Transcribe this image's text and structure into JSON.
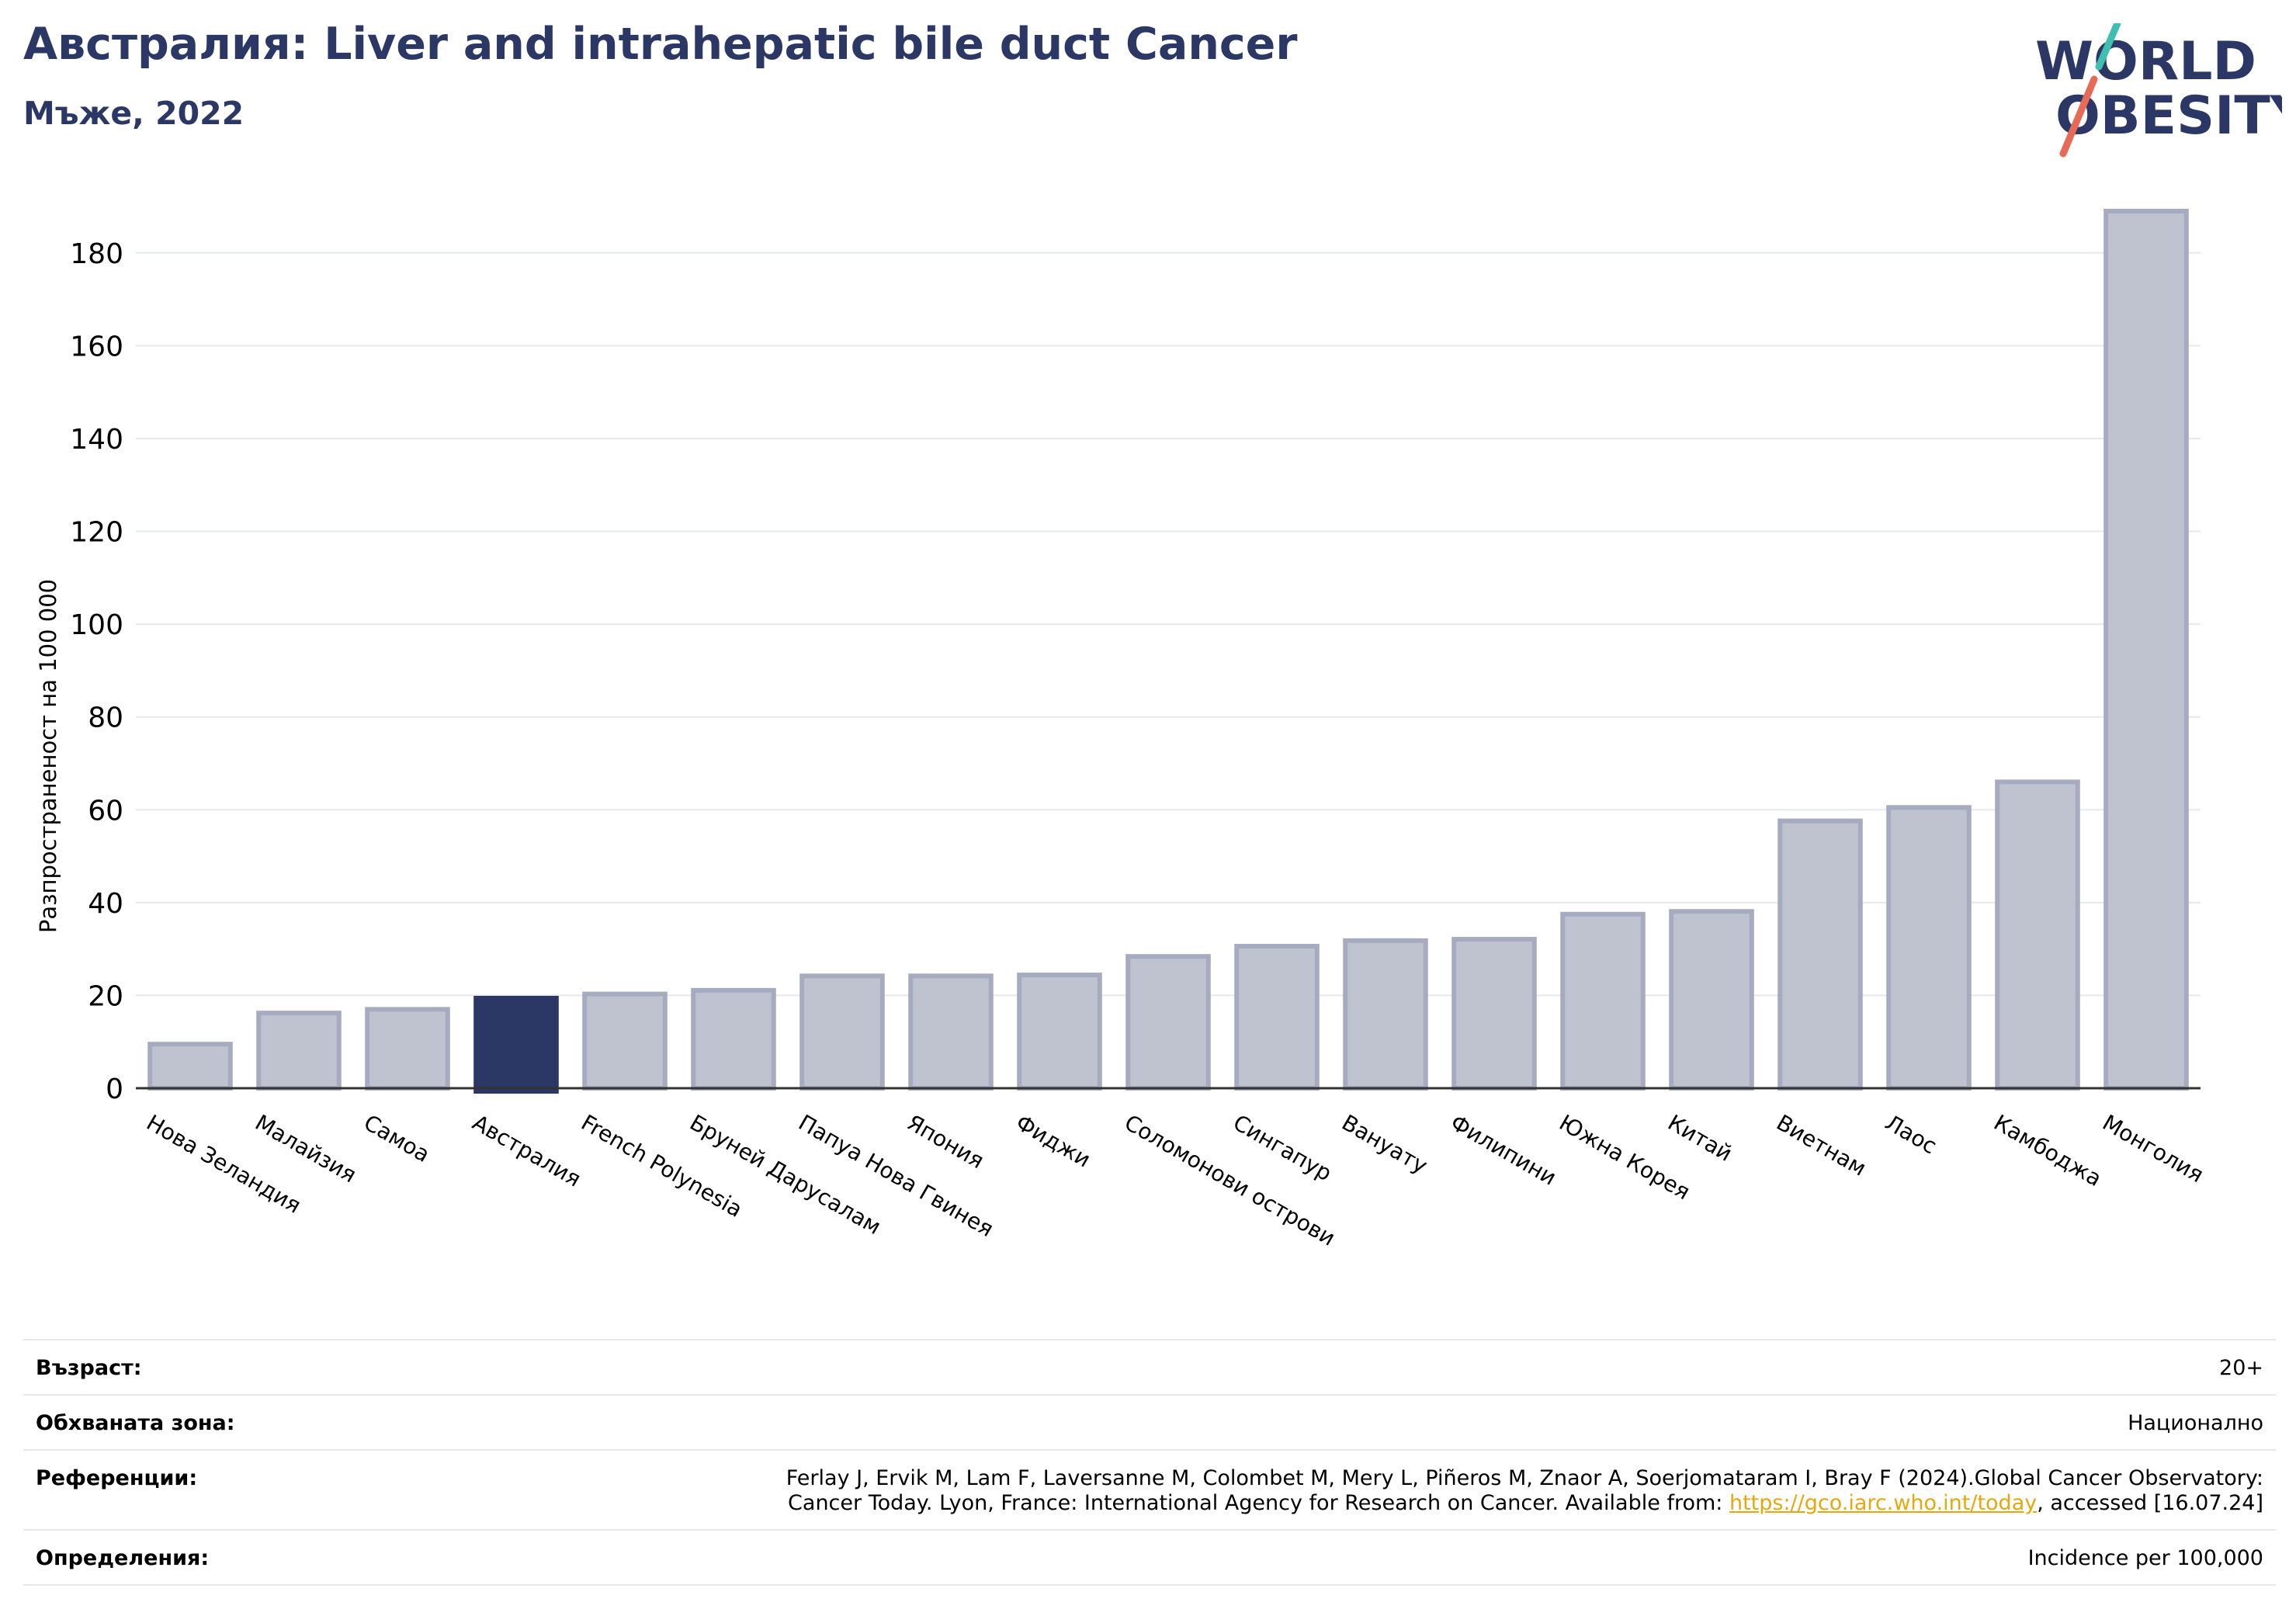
{
  "header": {
    "title": "Австралия: Liver and intrahepatic bile duct Cancer",
    "subtitle": "Мъже, 2022"
  },
  "logo": {
    "line1": "WORLD",
    "line2": "OBESITY"
  },
  "colors": {
    "bar": "#bfc3cf",
    "bar_edge": "#a6abc0",
    "highlight": "#2b3764",
    "title": "#2b3764",
    "link": "#e6a80e",
    "logo_teal": "#3fbfb2",
    "logo_coral": "#e76a57"
  },
  "chart_data": {
    "type": "bar",
    "title": "Австралия: Liver and intrahepatic bile duct Cancer",
    "ylabel": "Разпространеност  на 100 000",
    "xlabel": "",
    "ylim": [
      0,
      190
    ],
    "yticks": [
      0,
      20,
      40,
      60,
      80,
      100,
      120,
      140,
      160,
      180
    ],
    "grid": true,
    "highlight": "Австралия",
    "categories": [
      "Нова Зеландия",
      "Малайзия",
      "Самоа",
      "Австралия",
      "French Polynesia",
      "Бруней Дарусалам",
      "Папуа Нова Гвинея",
      "Япония",
      "Фиджи",
      "Соломонови острови",
      "Сингапур",
      "Вануату",
      "Филипини",
      "Южна Корея",
      "Китай",
      "Виетнам",
      "Лаос",
      "Камбоджа",
      "Монголия"
    ],
    "values": [
      9.5,
      16.2,
      17.0,
      19.4,
      20.3,
      21.1,
      24.2,
      24.2,
      24.4,
      28.4,
      30.6,
      31.8,
      32.1,
      37.5,
      38.1,
      57.6,
      60.5,
      66.0,
      189.0
    ]
  },
  "info": {
    "age_label": "Възраст:",
    "age_value": "20+",
    "area_label": "Обхваната зона:",
    "area_value": "Национално",
    "refs_label": "Референции:",
    "refs_line1": "Ferlay J, Ervik M, Lam F, Laversanne M, Colombet M, Mery L, Piñeros M, Znaor A, Soerjomataram I, Bray F (2024).Global Cancer Observatory:",
    "refs_line2_before": "Cancer Today. Lyon, France: International Agency for Research on Cancer. Available from: ",
    "refs_link": "https://gco.iarc.who.int/today",
    "refs_line2_after": ", accessed [16.07.24]",
    "defs_label": "Определения:",
    "defs_value": "Incidence per 100,000"
  }
}
